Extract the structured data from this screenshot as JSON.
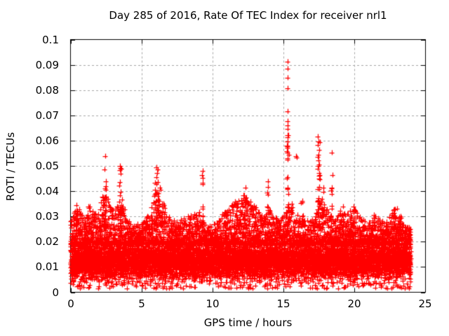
{
  "chart_data": {
    "type": "scatter",
    "title": "Day 285 of 2016, Rate Of TEC Index for receiver nrl1",
    "xlabel": "GPS time / hours",
    "ylabel": "ROTI / TECUs",
    "xlim": [
      0,
      25
    ],
    "ylim": [
      0,
      0.1
    ],
    "xticks": [
      0,
      5,
      10,
      15,
      20,
      25
    ],
    "xtick_labels": [
      "0",
      "5",
      "10",
      "15",
      "20",
      "25"
    ],
    "yticks": [
      0,
      0.01,
      0.02,
      0.03,
      0.04,
      0.05,
      0.06,
      0.07,
      0.08,
      0.09,
      0.1
    ],
    "ytick_labels": [
      "0",
      "0.01",
      "0.02",
      "0.03",
      "0.04",
      "0.05",
      "0.06",
      "0.07",
      "0.08",
      "0.09",
      "0.1"
    ],
    "grid": true,
    "grid_style": "dashed",
    "grid_color": "#a6a6a6",
    "legend": "none",
    "marker": "+",
    "marker_color": "#ff0000",
    "data_time_range_hours": [
      0,
      24
    ],
    "noise_band": {
      "floor": 0.0045,
      "dense_top": 0.0205,
      "sparse_floor": 0.0015
    },
    "envelope_step_hours": 0.5,
    "envelope": [
      0.03,
      0.034,
      0.03,
      0.032,
      0.033,
      0.04,
      0.034,
      0.038,
      0.029,
      0.027,
      0.028,
      0.031,
      0.04,
      0.036,
      0.029,
      0.028,
      0.03,
      0.031,
      0.031,
      0.027,
      0.026,
      0.03,
      0.033,
      0.035,
      0.037,
      0.038,
      0.034,
      0.03,
      0.033,
      0.029,
      0.03,
      0.036,
      0.032,
      0.03,
      0.029,
      0.038,
      0.034,
      0.03,
      0.031,
      0.032,
      0.033,
      0.029,
      0.028,
      0.03,
      0.028,
      0.03,
      0.032,
      0.027,
      0.025
    ],
    "spikes": [
      {
        "x": 0.45,
        "w": 0.15,
        "top": 0.034,
        "n": 10
      },
      {
        "x": 1.35,
        "w": 0.15,
        "top": 0.034,
        "n": 10
      },
      {
        "x": 2.25,
        "w": 0.3,
        "top": 0.04,
        "n": 18
      },
      {
        "x": 2.45,
        "w": 0.15,
        "top": 0.05,
        "n": 22
      },
      {
        "x": 3.5,
        "w": 0.12,
        "top": 0.05,
        "n": 16
      },
      {
        "x": 6.05,
        "w": 0.2,
        "top": 0.049,
        "n": 26
      },
      {
        "x": 6.4,
        "w": 0.15,
        "top": 0.043,
        "n": 12
      },
      {
        "x": 9.0,
        "w": 0.2,
        "top": 0.032,
        "n": 8
      },
      {
        "x": 9.3,
        "w": 0.06,
        "top": 0.046,
        "n": 6
      },
      {
        "x": 10.9,
        "w": 0.15,
        "top": 0.034,
        "n": 8
      },
      {
        "x": 11.7,
        "w": 0.2,
        "top": 0.036,
        "n": 12
      },
      {
        "x": 12.3,
        "w": 0.25,
        "top": 0.041,
        "n": 20
      },
      {
        "x": 13.0,
        "w": 0.12,
        "top": 0.035,
        "n": 8
      },
      {
        "x": 13.9,
        "w": 0.1,
        "top": 0.043,
        "n": 10
      },
      {
        "x": 15.3,
        "w": 0.1,
        "top": 0.066,
        "n": 24
      },
      {
        "x": 16.3,
        "w": 0.1,
        "top": 0.037,
        "n": 8
      },
      {
        "x": 17.5,
        "w": 0.12,
        "top": 0.06,
        "n": 22
      },
      {
        "x": 17.8,
        "w": 0.1,
        "top": 0.042,
        "n": 10
      },
      {
        "x": 18.4,
        "w": 0.07,
        "top": 0.046,
        "n": 8
      },
      {
        "x": 19.1,
        "w": 0.15,
        "top": 0.035,
        "n": 10
      },
      {
        "x": 19.9,
        "w": 0.15,
        "top": 0.034,
        "n": 10
      },
      {
        "x": 21.4,
        "w": 0.15,
        "top": 0.031,
        "n": 8
      },
      {
        "x": 22.8,
        "w": 0.15,
        "top": 0.033,
        "n": 14
      },
      {
        "x": 23.2,
        "w": 0.15,
        "top": 0.03,
        "n": 10
      }
    ],
    "outliers": [
      [
        0.4,
        0.0345
      ],
      [
        2.43,
        0.054
      ],
      [
        2.4,
        0.0487
      ],
      [
        3.47,
        0.05
      ],
      [
        3.52,
        0.0493
      ],
      [
        6.02,
        0.0495
      ],
      [
        6.08,
        0.0472
      ],
      [
        9.3,
        0.048
      ],
      [
        9.28,
        0.0465
      ],
      [
        9.31,
        0.0452
      ],
      [
        9.29,
        0.0428
      ],
      [
        9.32,
        0.034
      ],
      [
        12.33,
        0.0415
      ],
      [
        13.9,
        0.044
      ],
      [
        13.93,
        0.0418
      ],
      [
        15.28,
        0.0913
      ],
      [
        15.29,
        0.0886
      ],
      [
        15.28,
        0.0848
      ],
      [
        15.29,
        0.0808
      ],
      [
        15.28,
        0.0716
      ],
      [
        15.3,
        0.0678
      ],
      [
        15.31,
        0.0662
      ],
      [
        15.29,
        0.0648
      ],
      [
        15.35,
        0.0622
      ],
      [
        15.28,
        0.0598
      ],
      [
        15.31,
        0.0572
      ],
      [
        15.3,
        0.0552
      ],
      [
        15.38,
        0.0545
      ],
      [
        15.9,
        0.054
      ],
      [
        15.93,
        0.0532
      ],
      [
        17.45,
        0.0617
      ],
      [
        17.47,
        0.0597
      ],
      [
        17.44,
        0.0584
      ],
      [
        17.5,
        0.0565
      ],
      [
        17.46,
        0.0545
      ],
      [
        17.48,
        0.0523
      ],
      [
        17.52,
        0.0505
      ],
      [
        17.43,
        0.0488
      ],
      [
        18.42,
        0.0552
      ],
      [
        18.45,
        0.0463
      ],
      [
        18.44,
        0.039
      ],
      [
        23.0,
        0.0332
      ]
    ]
  }
}
